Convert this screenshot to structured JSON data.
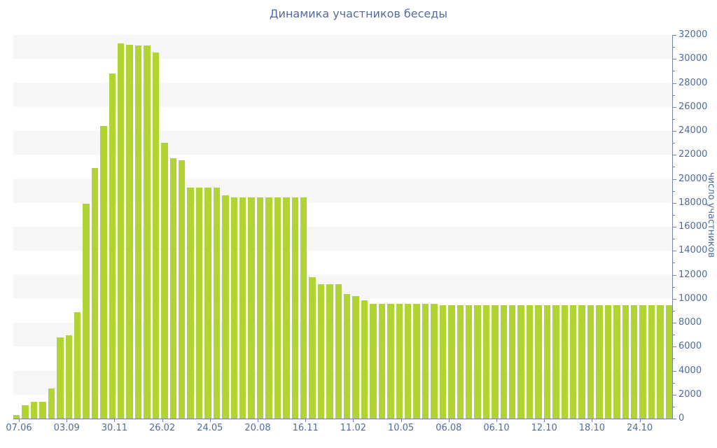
{
  "chart_data": {
    "type": "bar",
    "title": "Динамика участников беседы",
    "xlabel": "",
    "ylabel": "число участников",
    "ylim": [
      0,
      32000
    ],
    "y_major_step": 2000,
    "y_minor_step": 1000,
    "grid": "alternating horizontal bands every 2000 units, no gridlines",
    "legend_position": "none",
    "x_tick_labels": [
      "07.06",
      "03.09",
      "30.11",
      "26.02",
      "24.05",
      "20.08",
      "16.11",
      "11.02",
      "10.05",
      "06.08",
      "06.10",
      "12.10",
      "18.10",
      "24.10"
    ],
    "values": [
      300,
      1100,
      1400,
      1400,
      2500,
      6800,
      6950,
      8900,
      17900,
      20900,
      24400,
      28800,
      31300,
      31200,
      31100,
      31150,
      30550,
      23000,
      21700,
      21550,
      19250,
      19250,
      19250,
      19250,
      18650,
      18450,
      18450,
      18450,
      18450,
      18450,
      18450,
      18450,
      18450,
      18450,
      11800,
      11200,
      11200,
      11200,
      10400,
      10200,
      9850,
      9600,
      9600,
      9600,
      9600,
      9600,
      9600,
      9600,
      9600,
      9480,
      9480,
      9480,
      9480,
      9480,
      9480,
      9480,
      9480,
      9480,
      9480,
      9480,
      9480,
      9480,
      9480,
      9480,
      9480,
      9480,
      9480,
      9480,
      9480,
      9480,
      9480,
      9480,
      9480,
      9480,
      9480,
      9480
    ],
    "colors": {
      "bar": "#afd434",
      "stripe": "#f6f6f6",
      "axis": "#7483ad",
      "tick_label": "#4e6b9e",
      "title": "#556b9c",
      "background": "#ffffff"
    }
  }
}
